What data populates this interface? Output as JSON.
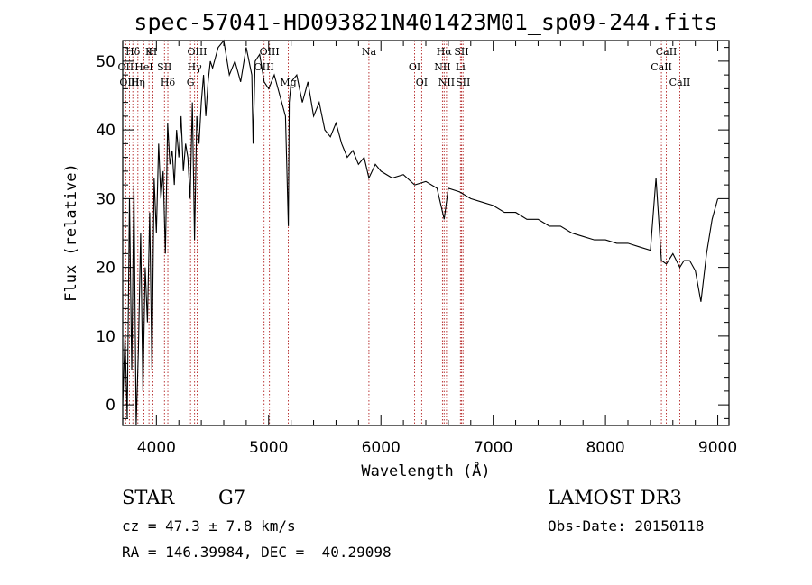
{
  "chart_data": {
    "type": "line",
    "title": "spec-57041-HD093821N401423M01_sp09-244.fits",
    "xlabel": "Wavelength (Å)",
    "ylabel": "Flux (relative)",
    "xlim": [
      3700,
      9100
    ],
    "ylim": [
      -3,
      53
    ],
    "xticks": [
      4000,
      5000,
      6000,
      7000,
      8000,
      9000
    ],
    "yticks": [
      0,
      10,
      20,
      30,
      40,
      50
    ],
    "grid": false,
    "series": [
      {
        "x": [
          3700,
          3720,
          3740,
          3760,
          3780,
          3800,
          3820,
          3840,
          3860,
          3880,
          3900,
          3920,
          3940,
          3960,
          3980,
          4000,
          4020,
          4040,
          4060,
          4080,
          4100,
          4120,
          4140,
          4160,
          4180,
          4200,
          4220,
          4240,
          4260,
          4280,
          4300,
          4320,
          4340,
          4360,
          4380,
          4400,
          4420,
          4440,
          4460,
          4480,
          4500,
          4550,
          4600,
          4650,
          4700,
          4750,
          4800,
          4850,
          4861,
          4880,
          4920,
          4960,
          5000,
          5050,
          5100,
          5150,
          5175,
          5183,
          5200,
          5250,
          5300,
          5350,
          5400,
          5450,
          5500,
          5550,
          5600,
          5650,
          5700,
          5750,
          5800,
          5850,
          5893,
          5950,
          6000,
          6100,
          6200,
          6300,
          6400,
          6500,
          6563,
          6600,
          6700,
          6800,
          6900,
          7000,
          7100,
          7200,
          7300,
          7400,
          7500,
          7600,
          7700,
          7800,
          7900,
          8000,
          8100,
          8200,
          8300,
          8400,
          8450,
          8498,
          8542,
          8600,
          8662,
          8700,
          8750,
          8800,
          8850,
          8900,
          8950,
          9000
        ],
        "y": [
          0,
          10,
          -2,
          30,
          5,
          32,
          -3,
          8,
          25,
          2,
          20,
          12,
          28,
          5,
          33,
          25,
          38,
          30,
          34,
          22,
          41,
          35,
          37,
          32,
          40,
          36,
          42,
          34,
          38,
          36,
          30,
          44,
          24,
          42,
          38,
          44,
          48,
          42,
          47,
          50,
          49,
          52,
          53,
          48,
          50,
          47,
          52,
          48,
          38,
          50,
          51,
          47,
          46,
          48,
          45,
          42,
          26,
          44,
          47,
          48,
          44,
          47,
          42,
          44,
          40,
          39,
          41,
          38,
          36,
          37,
          35,
          36,
          33,
          35,
          34,
          33,
          33.5,
          32,
          32.5,
          31.5,
          27,
          31.5,
          31,
          30,
          29.5,
          29,
          28,
          28,
          27,
          27,
          26,
          26,
          25,
          24.5,
          24,
          24,
          23.5,
          23.5,
          23,
          22.5,
          33,
          21,
          20.5,
          22,
          20,
          21,
          21,
          19.5,
          15,
          22,
          27,
          30
        ]
      }
    ],
    "lines": [
      {
        "label": "Hδ",
        "x": 3790
      },
      {
        "label": "OII",
        "x": 3727
      },
      {
        "label": "OIII",
        "x": 3760
      },
      {
        "label": "K",
        "x": 3934
      },
      {
        "label": "HeI",
        "x": 3889
      },
      {
        "label": "Hη",
        "x": 3835
      },
      {
        "label": "H",
        "x": 3969
      },
      {
        "label": "SII",
        "x": 4072
      },
      {
        "label": "Hδ",
        "x": 4102
      },
      {
        "label": "OIII",
        "x": 4363
      },
      {
        "label": "Hγ",
        "x": 4340
      },
      {
        "label": "G",
        "x": 4304
      },
      {
        "label": "OIII",
        "x": 5007
      },
      {
        "label": "OIII",
        "x": 4959
      },
      {
        "label": "Mg",
        "x": 5175
      },
      {
        "label": "Na",
        "x": 5893
      },
      {
        "label": "OI",
        "x": 6300
      },
      {
        "label": "OI",
        "x": 6363
      },
      {
        "label": "Hα",
        "x": 6563
      },
      {
        "label": "NII",
        "x": 6548
      },
      {
        "label": "NII",
        "x": 6584
      },
      {
        "label": "SII",
        "x": 6717
      },
      {
        "label": "Li",
        "x": 6708
      },
      {
        "label": "SII",
        "x": 6731
      },
      {
        "label": "CaII",
        "x": 8542
      },
      {
        "label": "CaII",
        "x": 8498
      },
      {
        "label": "CaII",
        "x": 8662
      }
    ]
  },
  "info": {
    "class_label": "STAR",
    "subclass": "G7",
    "survey": "LAMOST DR3",
    "cz": "cz = 47.3 ± 7.8 km/s",
    "obs_date": "Obs-Date: 20150118",
    "coords": "RA = 146.39984, DEC =  40.29098"
  },
  "colors": {
    "spectrum": "#000000",
    "line_markers": "#b22222",
    "axes": "#000000",
    "background": "#ffffff"
  }
}
